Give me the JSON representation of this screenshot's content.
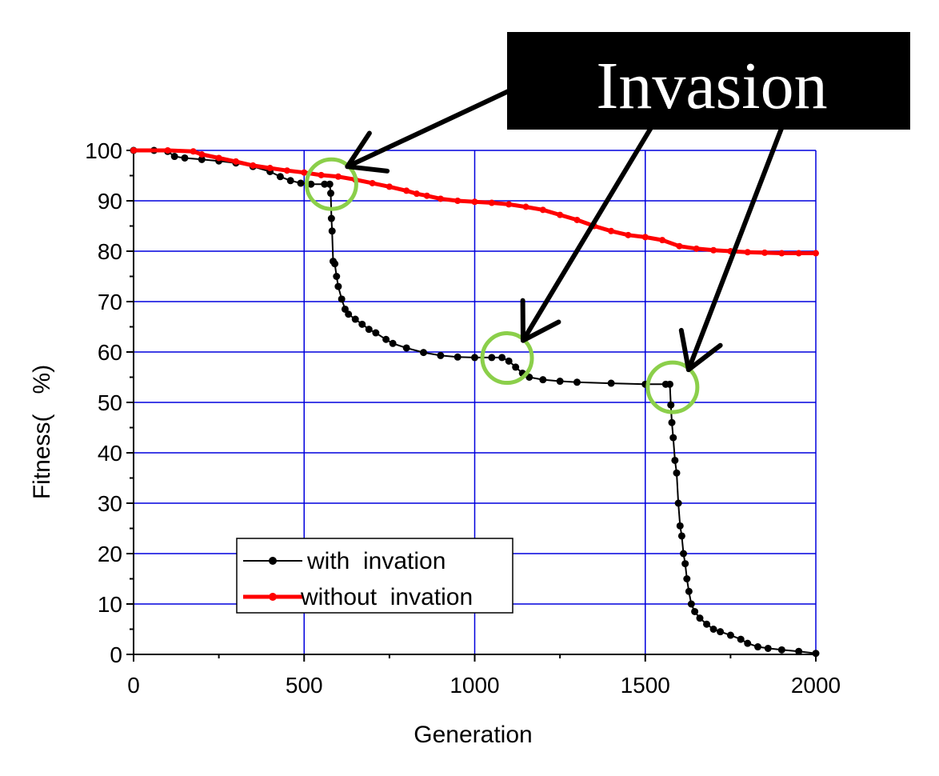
{
  "chart_data": {
    "type": "line",
    "title": "",
    "xlabel": "Generation",
    "ylabel": "Fitness(   %)",
    "xlim": [
      0,
      2000
    ],
    "ylim": [
      0,
      100
    ],
    "x_ticks": [
      0,
      500,
      1000,
      1500,
      2000
    ],
    "y_ticks": [
      0,
      10,
      20,
      30,
      40,
      50,
      60,
      70,
      80,
      90,
      100
    ],
    "grid": true,
    "legend_position": "lower-left",
    "series": [
      {
        "name": "with  invation",
        "color": "#000000",
        "points": [
          [
            0,
            100
          ],
          [
            60,
            100
          ],
          [
            100,
            99.8
          ],
          [
            120,
            98.8
          ],
          [
            150,
            98.5
          ],
          [
            200,
            98.2
          ],
          [
            250,
            97.9
          ],
          [
            300,
            97.5
          ],
          [
            350,
            96.8
          ],
          [
            400,
            95.8
          ],
          [
            430,
            94.8
          ],
          [
            460,
            94.0
          ],
          [
            490,
            93.5
          ],
          [
            520,
            93.3
          ],
          [
            560,
            93.3
          ],
          [
            575,
            93.3
          ],
          [
            578,
            91.5
          ],
          [
            580,
            86.5
          ],
          [
            582,
            84
          ],
          [
            585,
            78
          ],
          [
            590,
            77.5
          ],
          [
            595,
            75
          ],
          [
            600,
            73
          ],
          [
            610,
            70.5
          ],
          [
            620,
            68.5
          ],
          [
            630,
            67.5
          ],
          [
            650,
            66.5
          ],
          [
            670,
            65.5
          ],
          [
            690,
            64.5
          ],
          [
            710,
            63.8
          ],
          [
            740,
            62.5
          ],
          [
            760,
            61.7
          ],
          [
            800,
            60.8
          ],
          [
            850,
            59.9
          ],
          [
            900,
            59.3
          ],
          [
            950,
            59.0
          ],
          [
            1000,
            58.9
          ],
          [
            1050,
            58.9
          ],
          [
            1080,
            58.9
          ],
          [
            1100,
            58.2
          ],
          [
            1120,
            57.0
          ],
          [
            1140,
            55.8
          ],
          [
            1160,
            55.0
          ],
          [
            1200,
            54.5
          ],
          [
            1250,
            54.2
          ],
          [
            1300,
            54.0
          ],
          [
            1400,
            53.8
          ],
          [
            1500,
            53.6
          ],
          [
            1560,
            53.6
          ],
          [
            1572,
            53.6
          ],
          [
            1575,
            49.5
          ],
          [
            1578,
            46
          ],
          [
            1582,
            43
          ],
          [
            1587,
            38.5
          ],
          [
            1592,
            36
          ],
          [
            1597,
            30
          ],
          [
            1602,
            25.5
          ],
          [
            1607,
            23.5
          ],
          [
            1612,
            20
          ],
          [
            1617,
            18
          ],
          [
            1622,
            15
          ],
          [
            1628,
            12.5
          ],
          [
            1635,
            10
          ],
          [
            1645,
            8.5
          ],
          [
            1660,
            7.2
          ],
          [
            1680,
            6
          ],
          [
            1700,
            5
          ],
          [
            1720,
            4.5
          ],
          [
            1750,
            3.8
          ],
          [
            1780,
            3
          ],
          [
            1800,
            2.2
          ],
          [
            1830,
            1.5
          ],
          [
            1860,
            1.2
          ],
          [
            1900,
            0.9
          ],
          [
            1950,
            0.6
          ],
          [
            2000,
            0.2
          ]
        ]
      },
      {
        "name": "without  invation",
        "color": "#ff0000",
        "points": [
          [
            0,
            100
          ],
          [
            100,
            100
          ],
          [
            175,
            99.8
          ],
          [
            200,
            99.2
          ],
          [
            250,
            98.5
          ],
          [
            300,
            97.8
          ],
          [
            350,
            97.0
          ],
          [
            400,
            96.5
          ],
          [
            450,
            96.0
          ],
          [
            500,
            95.6
          ],
          [
            550,
            95.1
          ],
          [
            600,
            94.8
          ],
          [
            650,
            94.2
          ],
          [
            700,
            93.5
          ],
          [
            750,
            92.8
          ],
          [
            800,
            92.0
          ],
          [
            830,
            91.4
          ],
          [
            860,
            91.0
          ],
          [
            900,
            90.4
          ],
          [
            950,
            90.0
          ],
          [
            1000,
            89.8
          ],
          [
            1050,
            89.6
          ],
          [
            1100,
            89.3
          ],
          [
            1150,
            88.8
          ],
          [
            1200,
            88.2
          ],
          [
            1250,
            87.2
          ],
          [
            1300,
            86.2
          ],
          [
            1350,
            85.0
          ],
          [
            1400,
            84.0
          ],
          [
            1450,
            83.2
          ],
          [
            1500,
            82.8
          ],
          [
            1550,
            82.2
          ],
          [
            1600,
            81.0
          ],
          [
            1650,
            80.5
          ],
          [
            1700,
            80.2
          ],
          [
            1750,
            80.0
          ],
          [
            1800,
            79.8
          ],
          [
            1850,
            79.7
          ],
          [
            1900,
            79.6
          ],
          [
            1950,
            79.6
          ],
          [
            2000,
            79.6
          ]
        ]
      }
    ],
    "annotations": {
      "label": "Invasion",
      "highlight_points": [
        [
          580,
          93.3
        ],
        [
          1095,
          58.8
        ],
        [
          1580,
          53.0
        ]
      ]
    }
  }
}
